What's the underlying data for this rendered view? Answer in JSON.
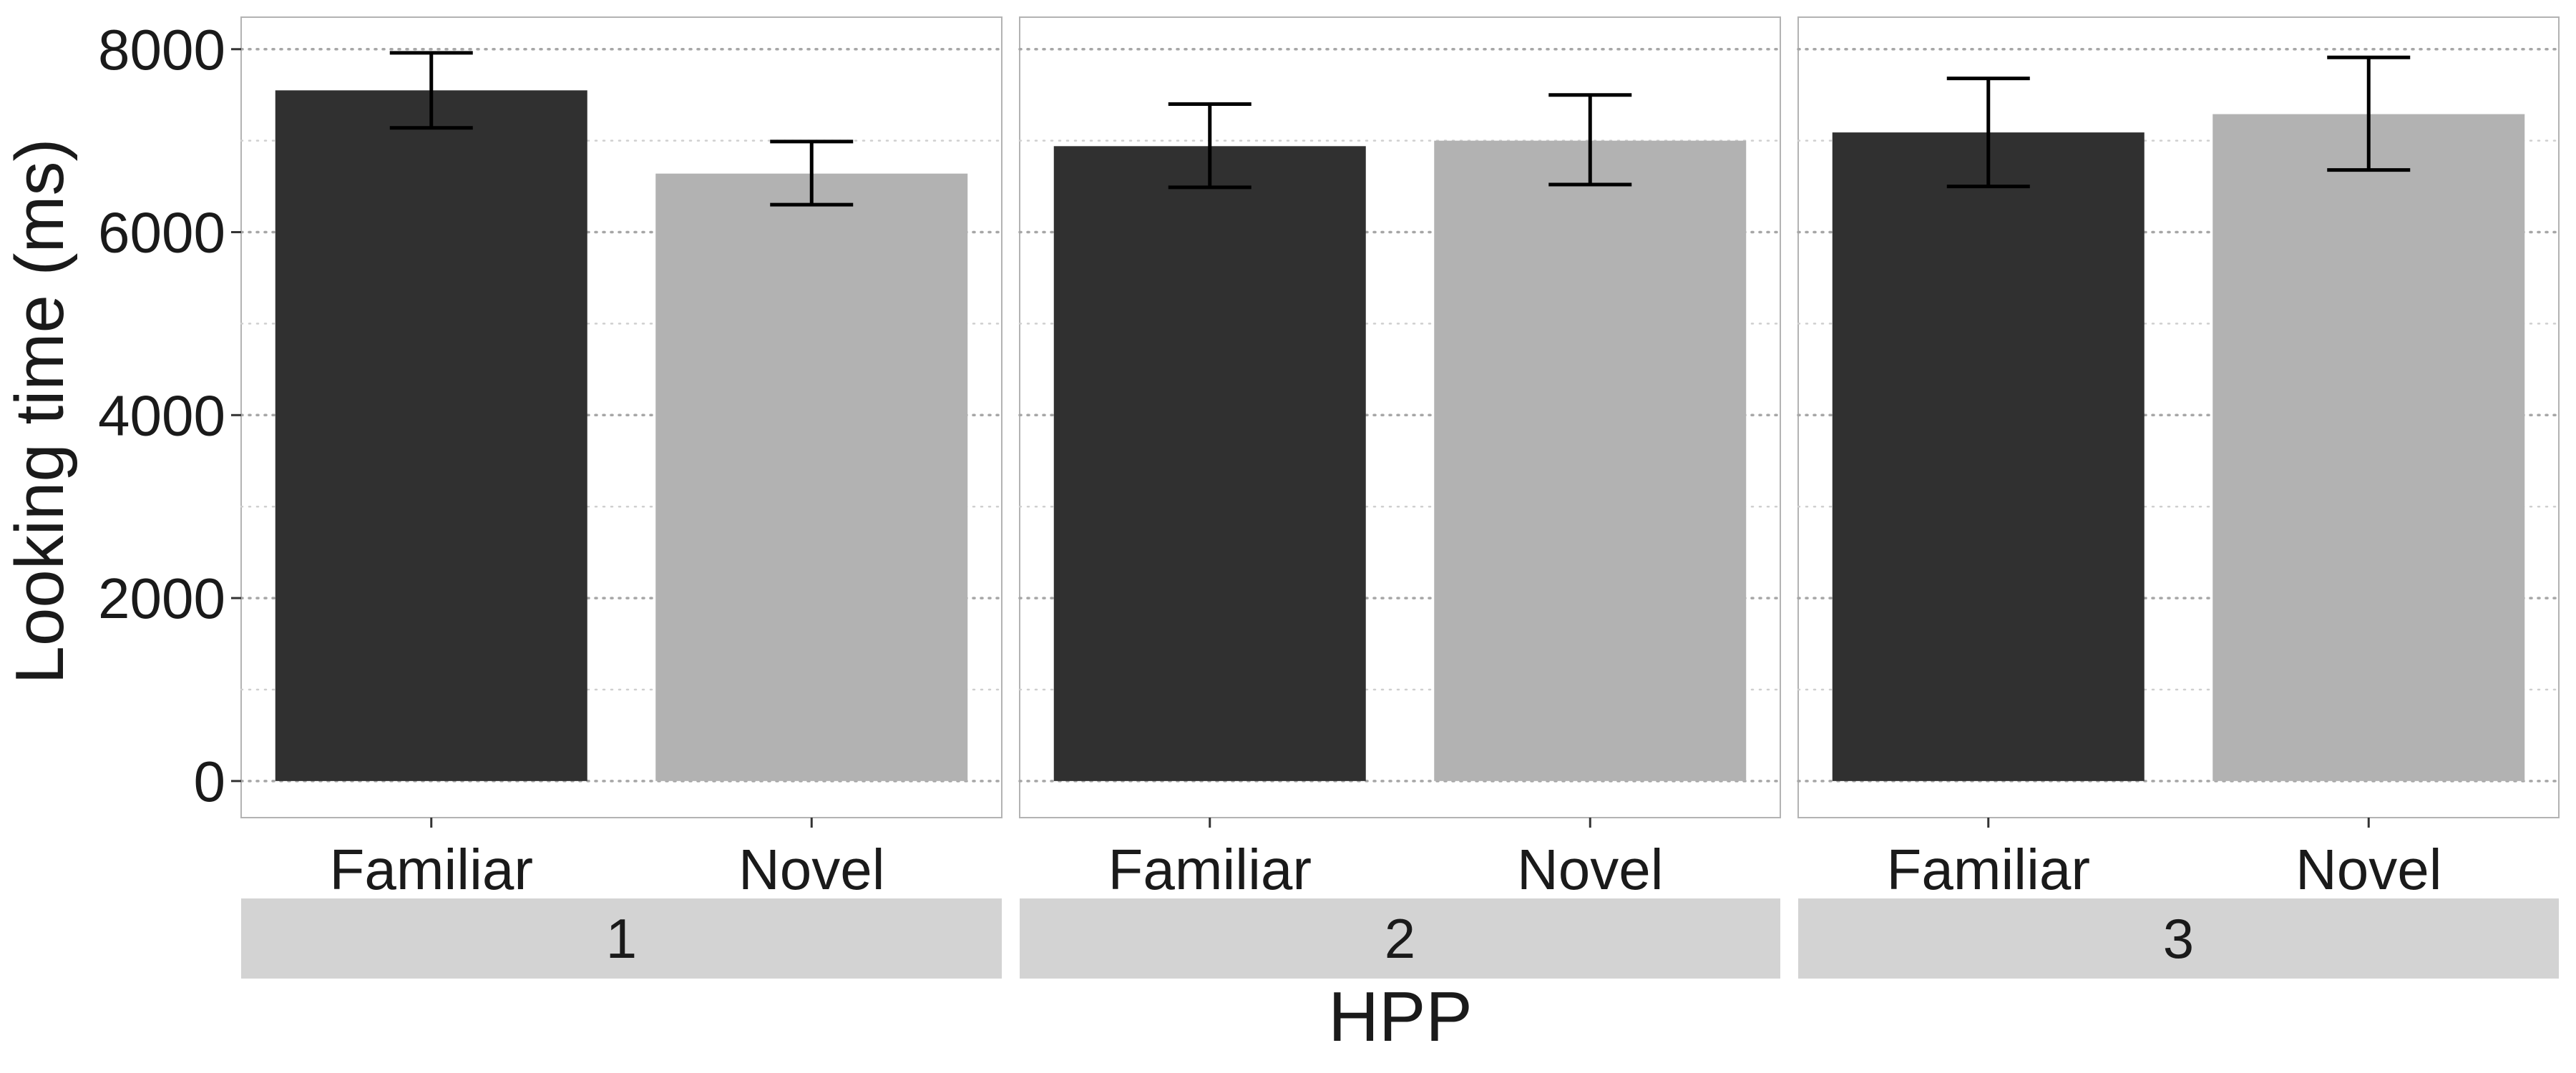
{
  "chart_data": {
    "type": "bar",
    "ylabel": "Looking time (ms)",
    "xlabel": "HPP",
    "ylim": [
      -400,
      8350
    ],
    "y_ticks": [
      0,
      2000,
      4000,
      6000,
      8000
    ],
    "y_minor_grid": [
      1000,
      3000,
      5000,
      7000
    ],
    "categories": [
      "Familiar",
      "Novel"
    ],
    "colors": {
      "Familiar": "#303030",
      "Novel": "#b2b2b2"
    },
    "grid": "dotted-horizontal",
    "legend": "none",
    "panels": [
      {
        "label": "1",
        "bars": [
          {
            "category": "Familiar",
            "value": 7550,
            "err_low": 7140,
            "err_high": 7960
          },
          {
            "category": "Novel",
            "value": 6640,
            "err_low": 6300,
            "err_high": 6990
          }
        ]
      },
      {
        "label": "2",
        "bars": [
          {
            "category": "Familiar",
            "value": 6940,
            "err_low": 6490,
            "err_high": 7400
          },
          {
            "category": "Novel",
            "value": 7000,
            "err_low": 6520,
            "err_high": 7500
          }
        ]
      },
      {
        "label": "3",
        "bars": [
          {
            "category": "Familiar",
            "value": 7090,
            "err_low": 6500,
            "err_high": 7680
          },
          {
            "category": "Novel",
            "value": 7290,
            "err_low": 6680,
            "err_high": 7910
          }
        ]
      }
    ]
  }
}
